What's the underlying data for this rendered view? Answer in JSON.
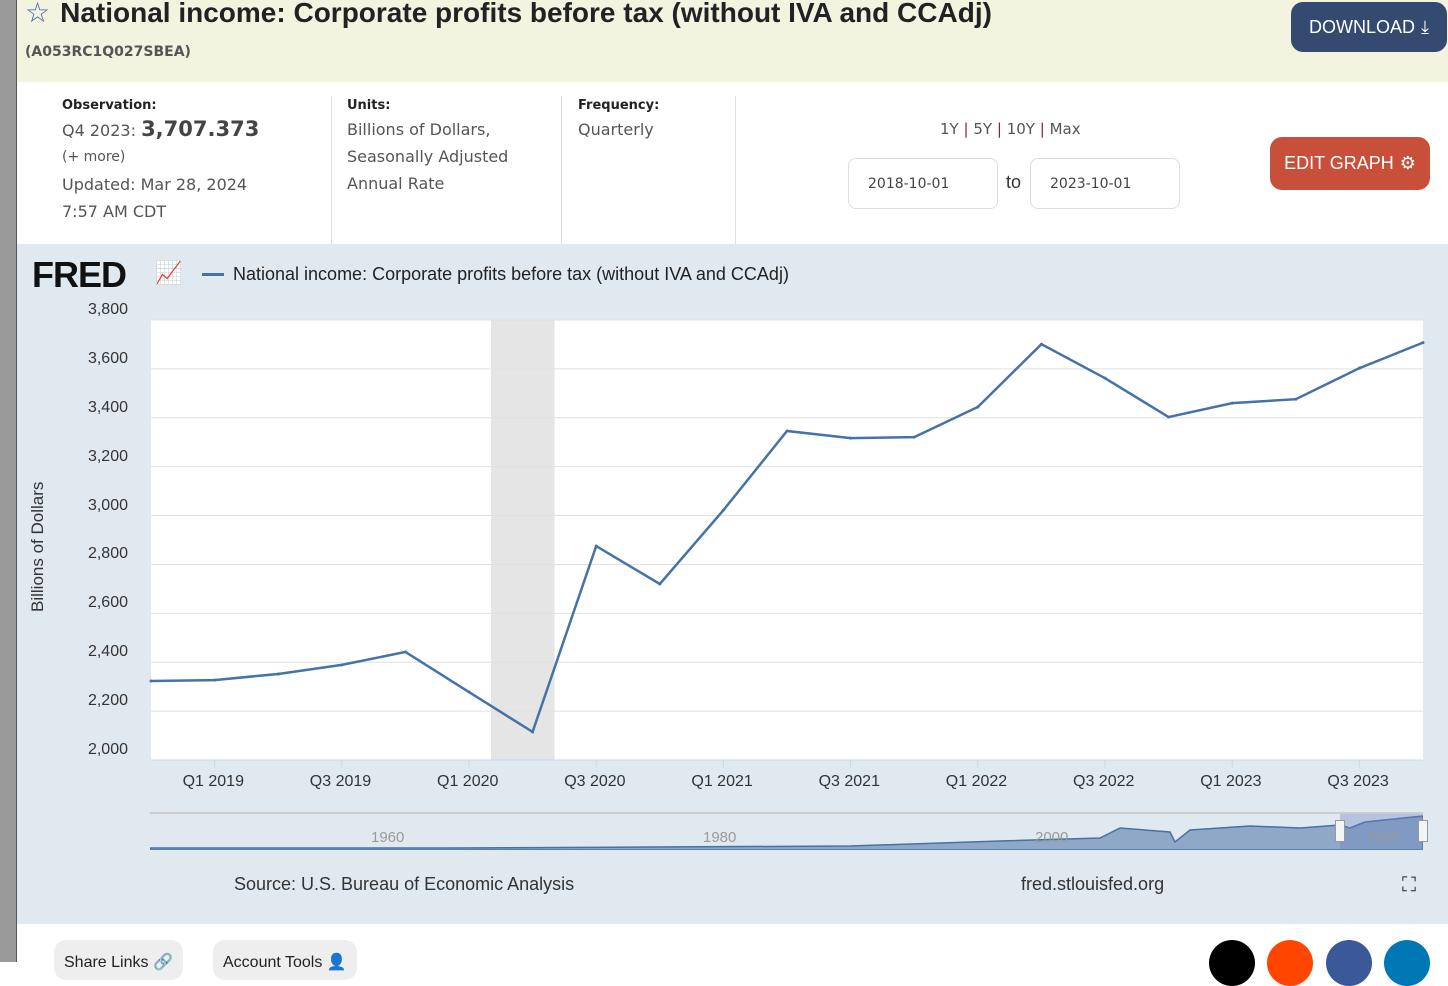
{
  "header": {
    "title": "National income: Corporate profits before tax (without IVA and CCAdj)",
    "series_id": "(A053RC1Q027SBEA)",
    "download_label": "DOWNLOAD",
    "edit_label": "EDIT GRAPH"
  },
  "meta": {
    "observation_label": "Observation:",
    "observation_period": "Q4 2023:",
    "observation_value": "3,707.373",
    "more": "(+ more)",
    "updated": "Updated: Mar 28, 2024",
    "updated_time": "7:57 AM CDT",
    "units_label": "Units:",
    "units_lines": [
      "Billions of Dollars,",
      "Seasonally Adjusted",
      "Annual Rate"
    ],
    "frequency_label": "Frequency:",
    "frequency": "Quarterly"
  },
  "range": {
    "options": [
      "1Y",
      "5Y",
      "10Y",
      "Max"
    ],
    "from": "2018-10-01",
    "to_label": "to",
    "to": "2023-10-01"
  },
  "chart": {
    "logo": "FRED",
    "source": "Source: U.S. Bureau of Economic Analysis",
    "site": "fred.stlouisfed.org",
    "navigator_labels": [
      "1960",
      "1980",
      "2000",
      "2020"
    ]
  },
  "chart_data": {
    "type": "line",
    "legend": "National income: Corporate profits before tax (without IVA and CCAdj)",
    "ylabel": "Billions of Dollars",
    "ylim": [
      2000,
      3800
    ],
    "yticks": [
      "2,000",
      "2,200",
      "2,400",
      "2,600",
      "2,800",
      "3,000",
      "3,200",
      "3,400",
      "3,600",
      "3,800"
    ],
    "xticks": [
      "Q1 2019",
      "Q3 2019",
      "Q1 2020",
      "Q3 2020",
      "Q1 2021",
      "Q3 2021",
      "Q1 2022",
      "Q3 2022",
      "Q1 2023",
      "Q3 2023"
    ],
    "grid": true,
    "line_color": "#4572a7",
    "recession": [
      "Q1 2020",
      "Q2 2020"
    ],
    "x": [
      "Q4 2018",
      "Q1 2019",
      "Q2 2019",
      "Q3 2019",
      "Q4 2019",
      "Q1 2020",
      "Q2 2020",
      "Q3 2020",
      "Q4 2020",
      "Q1 2021",
      "Q2 2021",
      "Q3 2021",
      "Q4 2021",
      "Q1 2022",
      "Q2 2022",
      "Q3 2022",
      "Q4 2022",
      "Q1 2023",
      "Q2 2023",
      "Q3 2023",
      "Q4 2023"
    ],
    "values": [
      2323,
      2327,
      2352,
      2389,
      2442,
      2278,
      2115,
      2875,
      2720,
      3022,
      3346,
      3317,
      3321,
      3444,
      3701,
      3562,
      3403,
      3460,
      3476,
      3603,
      3707.373
    ]
  },
  "footer": {
    "share": "Share Links",
    "account": "Account Tools"
  }
}
